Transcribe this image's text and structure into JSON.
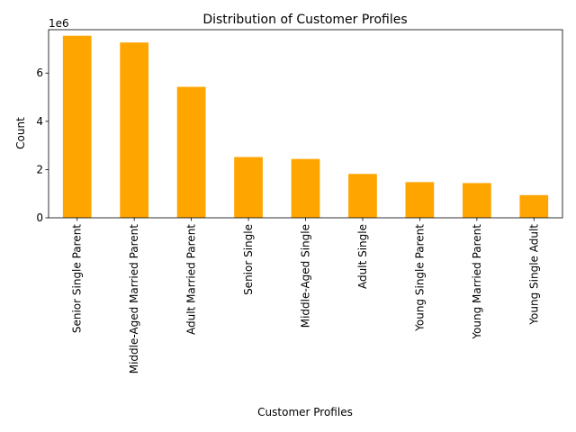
{
  "chart_data": {
    "type": "bar",
    "title": "Distribution of Customer Profiles",
    "xlabel": "Customer Profiles",
    "ylabel": "Count",
    "offset_text": "1e6",
    "ylim": [
      0,
      7.8
    ],
    "yticks": [
      0,
      2,
      4,
      6
    ],
    "grid": false,
    "bar_color": "#ffa500",
    "categories": [
      "Senior Single Parent",
      "Middle-Aged Married Parent",
      "Adult Married Parent",
      "Senior Single",
      "Middle-Aged Single",
      "Adult Single",
      "Young Single Parent",
      "Young Married Parent",
      "Young Single Adult"
    ],
    "values": [
      7.55,
      7.27,
      5.43,
      2.52,
      2.44,
      1.82,
      1.48,
      1.44,
      0.94
    ]
  }
}
